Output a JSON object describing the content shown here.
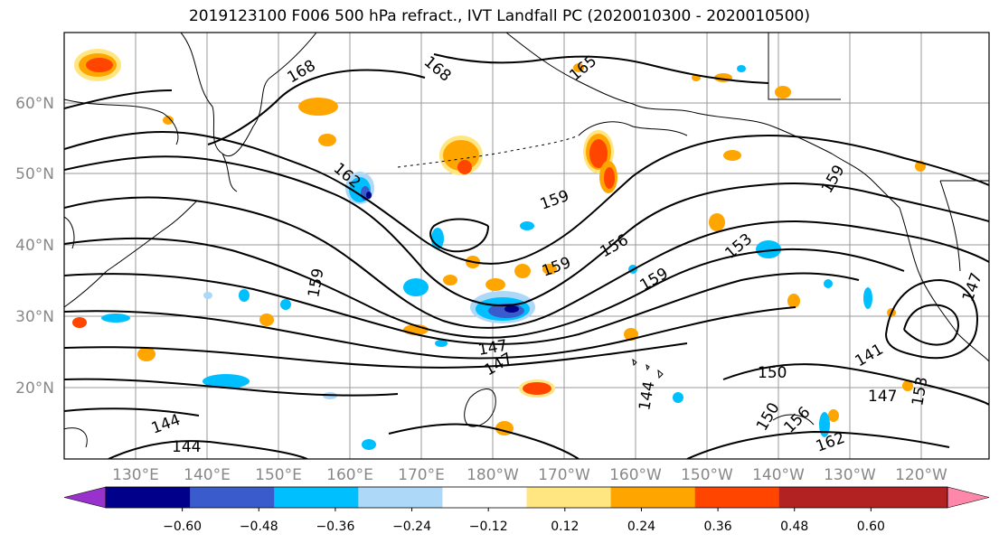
{
  "title": "2019123100 F006 500 hPa refract., IVT Landfall PC (2020010300 - 2020010500)",
  "map": {
    "lat_labels": [
      "60°N",
      "50°N",
      "40°N",
      "30°N",
      "20°N"
    ],
    "lon_labels": [
      "130°E",
      "140°E",
      "150°E",
      "160°E",
      "170°E",
      "180°W",
      "170°W",
      "160°W",
      "150°W",
      "140°W",
      "130°W",
      "120°W"
    ],
    "contour_labels": [
      "168",
      "168",
      "165",
      "162",
      "159",
      "159",
      "159",
      "159",
      "156",
      "153",
      "159",
      "150",
      "147",
      "147",
      "141",
      "144",
      "150",
      "153",
      "156",
      "162",
      "144",
      "147",
      "144",
      "147"
    ]
  },
  "colorbar": {
    "ticks": [
      "−0.60",
      "−0.48",
      "−0.36",
      "−0.24",
      "−0.12",
      "0.12",
      "0.24",
      "0.36",
      "0.48",
      "0.60"
    ],
    "colors": [
      "#9932CC",
      "#00008B",
      "#3A5BCC",
      "#00BFFF",
      "#ADD8F7",
      "#FFFFFF",
      "#FFE680",
      "#FFA500",
      "#FF4500",
      "#B22222",
      "#FF88AA"
    ]
  }
}
